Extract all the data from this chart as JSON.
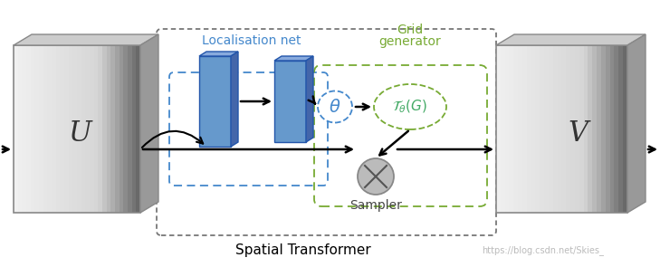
{
  "bg_color": "#ffffff",
  "title": "Spatial Transformer",
  "title_fontsize": 11,
  "title_color": "#000000",
  "localisation_label": "Localisation net",
  "localisation_color": "#4488cc",
  "grid_label": "Grid\ngenerator",
  "grid_color": "#77aa33",
  "sampler_label": "Sampler",
  "sampler_color": "#444444",
  "theta_color": "#4488cc",
  "tg_color": "#44aa66",
  "U_label": "U",
  "V_label": "V",
  "watermark": "https://blog.csdn.net/Skies_",
  "watermark_color": "#bbbbbb",
  "outer_box_color": "#777777",
  "block_front": "#6699cc",
  "block_top": "#88aadd",
  "block_right": "#4466aa",
  "block_edge": "#2255aa"
}
